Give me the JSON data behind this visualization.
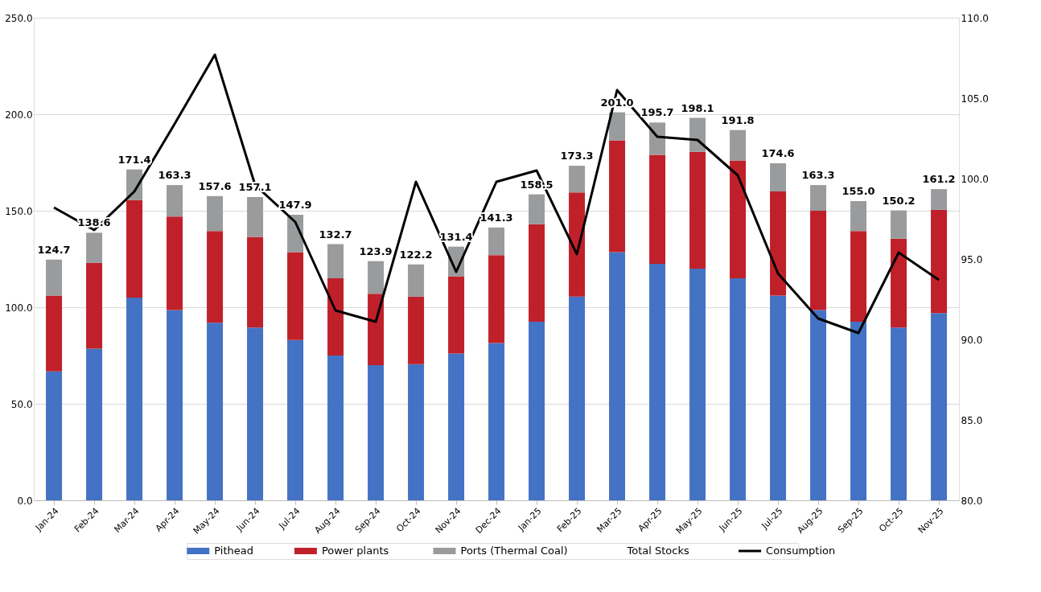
{
  "chart_data": {
    "type": "bar",
    "stacked": true,
    "grid": "y",
    "legend": "bottom",
    "categories": [
      "Jan-24",
      "Feb-24",
      "Mar-24",
      "Apr-24",
      "May-24",
      "Jun-24",
      "Jul-24",
      "Aug-24",
      "Sep-24",
      "Oct-24",
      "Nov-24",
      "Dec-24",
      "Jan-25",
      "Feb-25",
      "Mar-25",
      "Apr-25",
      "May-25",
      "Jun-25",
      "Jul-25",
      "Aug-25",
      "Sep-25",
      "Oct-25",
      "Nov-25"
    ],
    "totals": [
      "124.7",
      "138.6",
      "171.4",
      "163.3",
      "157.6",
      "157.1",
      "147.9",
      "132.7",
      "123.9",
      "122.2",
      "131.4",
      "141.3",
      "158.5",
      "173.3",
      "201.0",
      "195.7",
      "198.1",
      "191.8",
      "174.6",
      "163.3",
      "155.0",
      "150.2",
      "161.2"
    ],
    "annotations": [
      "Total Stocks"
    ],
    "ylim": [
      0,
      250
    ],
    "yticks": [
      {
        "value": 0,
        "label": "0.0"
      },
      {
        "value": 50,
        "label": "50.0"
      },
      {
        "value": 100,
        "label": "100.0"
      },
      {
        "value": 150,
        "label": "150.0"
      },
      {
        "value": 200,
        "label": "200.0"
      },
      {
        "value": 250,
        "label": "250.0"
      }
    ],
    "y2lim": [
      80,
      110
    ],
    "y2ticks": [
      {
        "value": 80,
        "label": "80.0"
      },
      {
        "value": 85,
        "label": "85.0"
      },
      {
        "value": 90,
        "label": "90.0"
      },
      {
        "value": 95,
        "label": "95.0"
      },
      {
        "value": 100,
        "label": "100.0"
      },
      {
        "value": 105,
        "label": "105.0"
      },
      {
        "value": 110,
        "label": "110.0"
      }
    ],
    "series": [
      {
        "name": "Pithead",
        "color": "#4472c4",
        "values": [
          66.8,
          78.5,
          105,
          98.5,
          92,
          89.5,
          83,
          75,
          70,
          70.5,
          76,
          81.5,
          92.5,
          105.5,
          128.5,
          122.5,
          120,
          115,
          106,
          98.5,
          92.5,
          89.5,
          97
        ]
      },
      {
        "name": "Power plants",
        "color": "#c0202a",
        "values": [
          39.2,
          44.5,
          50.5,
          48.5,
          47.5,
          47,
          45.5,
          40,
          37,
          35,
          40,
          45.5,
          50.5,
          54,
          58,
          56.5,
          60.5,
          61,
          54,
          51.5,
          47,
          46,
          53.5
        ]
      },
      {
        "name": "Ports (Thermal Coal)",
        "color": "#999b9c",
        "values": [
          18.7,
          15.6,
          15.9,
          16.3,
          18.1,
          20.6,
          19.4,
          17.7,
          16.9,
          16.7,
          15.4,
          14.3,
          15.5,
          13.8,
          14.5,
          16.7,
          17.6,
          15.8,
          14.6,
          13.3,
          15.5,
          14.7,
          10.7
        ]
      },
      {
        "name": "Consumption",
        "type": "line",
        "axis": "y2",
        "color": "#000000",
        "marker": "none",
        "line_style": "solid",
        "values": [
          98.2,
          96.8,
          99.2,
          103.4,
          107.7,
          99.6,
          97.3,
          91.8,
          91.1,
          99.8,
          94.2,
          99.8,
          100.5,
          95.3,
          105.5,
          102.6,
          102.4,
          100.2,
          94.1,
          91.3,
          90.4,
          95.4,
          93.7
        ]
      }
    ]
  }
}
